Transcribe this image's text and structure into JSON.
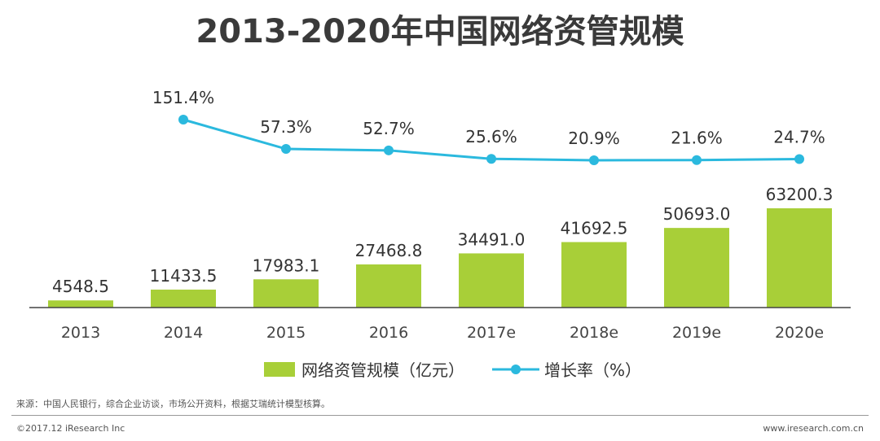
{
  "chart_data": {
    "type": "bar",
    "title": "2013-2020年中国网络资管规模",
    "categories": [
      "2013",
      "2014",
      "2015",
      "2016",
      "2017e",
      "2018e",
      "2019e",
      "2020e"
    ],
    "series": [
      {
        "name": "网络资管规模（亿元）",
        "type": "bar",
        "values": [
          4548.5,
          11433.5,
          17983.1,
          27468.8,
          34491.0,
          41692.5,
          50693.0,
          63200.3
        ],
        "labels": [
          "4548.5",
          "11433.5",
          "17983.1",
          "27468.8",
          "34491.0",
          "41692.5",
          "50693.0",
          "63200.3"
        ],
        "color": "#a8cf38"
      },
      {
        "name": "增长率（%）",
        "type": "line",
        "values": [
          null,
          151.4,
          57.3,
          52.7,
          25.6,
          20.9,
          21.6,
          24.7
        ],
        "labels": [
          "",
          "151.4%",
          "57.3%",
          "52.7%",
          "25.6%",
          "20.9%",
          "21.6%",
          "24.7%"
        ],
        "color": "#2bb9de"
      }
    ],
    "ylim": [
      0,
      70000
    ],
    "grid": false,
    "legend": "bottom-center"
  },
  "source_note": "来源：中国人民银行，综合企业访谈，市场公开资料，根据艾瑞统计模型核算。",
  "footer": {
    "copyright": "©2017.12 iResearch Inc",
    "website": "www.iresearch.com.cn"
  }
}
